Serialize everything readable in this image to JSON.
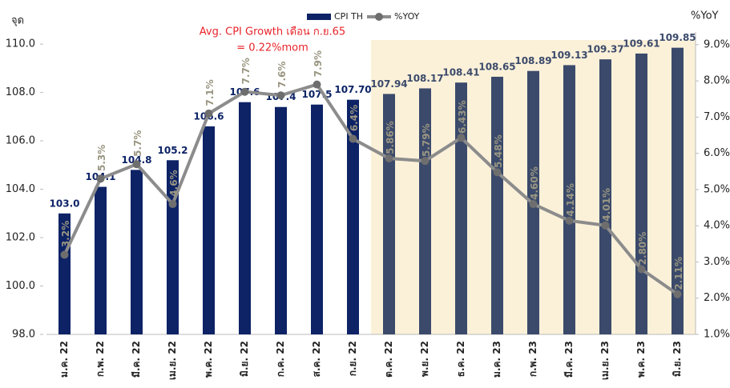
{
  "chart_data": {
    "type": "bar_line",
    "y_label": "จุด",
    "y2_label": "%YoY",
    "annotations": [
      "Avg. CPI Growth เดือน ก.ย.65",
      "= 0.22%mom"
    ],
    "shade": {
      "from": "ต.ค. 22",
      "color": "#fbf1d9"
    },
    "categories": [
      "ม.ค. 22",
      "ก.พ. 22",
      "มี.ค. 22",
      "เม.ย. 22",
      "พ.ค. 22",
      "มิ.ย. 22",
      "ก.ค. 22",
      "ส.ค. 22",
      "ก.ย. 22",
      "ต.ค. 22",
      "พ.ย. 22",
      "ธ.ค. 22",
      "ม.ค. 23",
      "ก.พ. 23",
      "มี.ค. 23",
      "เม.ย. 23",
      "พ.ค. 23",
      "มิ.ย. 23"
    ],
    "series": [
      {
        "name": "CPI TH",
        "type": "bar",
        "color": "#0d2366",
        "colors": [
          "#0d2366",
          "#0d2366",
          "#0d2366",
          "#0d2366",
          "#0d2366",
          "#0d2366",
          "#0d2366",
          "#0d2366",
          "#0d2366",
          "#3b4a6b",
          "#3b4a6b",
          "#3b4a6b",
          "#3b4a6b",
          "#3b4a6b",
          "#3b4a6b",
          "#3b4a6b",
          "#3b4a6b",
          "#3b4a6b"
        ],
        "values": [
          103.0,
          104.1,
          104.8,
          105.2,
          106.6,
          107.6,
          107.4,
          107.5,
          107.7,
          107.94,
          108.17,
          108.41,
          108.65,
          108.89,
          109.13,
          109.37,
          109.61,
          109.85
        ],
        "value_labels": [
          "103.0",
          "104.1",
          "104.8",
          "105.2",
          "106.6",
          "107.6",
          "107.4",
          "107.5",
          "107.70",
          "107.94",
          "108.17",
          "108.41",
          "108.65",
          "108.89",
          "109.13",
          "109.37",
          "109.61",
          "109.85"
        ]
      },
      {
        "name": "%YOY",
        "type": "line",
        "axis": "y2",
        "color": "#8c8c8c",
        "values": [
          3.2,
          5.3,
          5.7,
          4.6,
          7.1,
          7.7,
          7.6,
          7.9,
          6.4,
          5.86,
          5.79,
          6.43,
          5.48,
          4.6,
          4.14,
          4.01,
          2.8,
          2.11
        ],
        "value_labels": [
          "3.2%",
          "5.3%",
          "5.7%",
          "4.6%",
          "7.1%",
          "7.7%",
          "7.6%",
          "7.9%",
          "6.4%",
          "5.86%",
          "5.79%",
          "6.43%",
          "5.48%",
          "4.60%",
          "4.14%",
          "4.01%",
          "2.80%",
          "2.11%"
        ]
      }
    ],
    "ylim": [
      98,
      110.5
    ],
    "yticks": [
      {
        "value": 98,
        "label": "98.0"
      },
      {
        "value": 100,
        "label": "100.0"
      },
      {
        "value": 102,
        "label": "102.0"
      },
      {
        "value": 104,
        "label": "104.0"
      },
      {
        "value": 106,
        "label": "106.0"
      },
      {
        "value": 108,
        "label": "108.0"
      },
      {
        "value": 110,
        "label": "110.0"
      }
    ],
    "y2lim": [
      1,
      9.35
    ],
    "y2ticks": [
      {
        "value": 1,
        "label": "1.0%"
      },
      {
        "value": 2,
        "label": "2.0%"
      },
      {
        "value": 3,
        "label": "3.0%"
      },
      {
        "value": 4,
        "label": "4.0%"
      },
      {
        "value": 5,
        "label": "5.0%"
      },
      {
        "value": 6,
        "label": "6.0%"
      },
      {
        "value": 7,
        "label": "7.0%"
      },
      {
        "value": 8,
        "label": "8.0%"
      },
      {
        "value": 9,
        "label": "9.0%"
      }
    ],
    "legend": "top"
  }
}
